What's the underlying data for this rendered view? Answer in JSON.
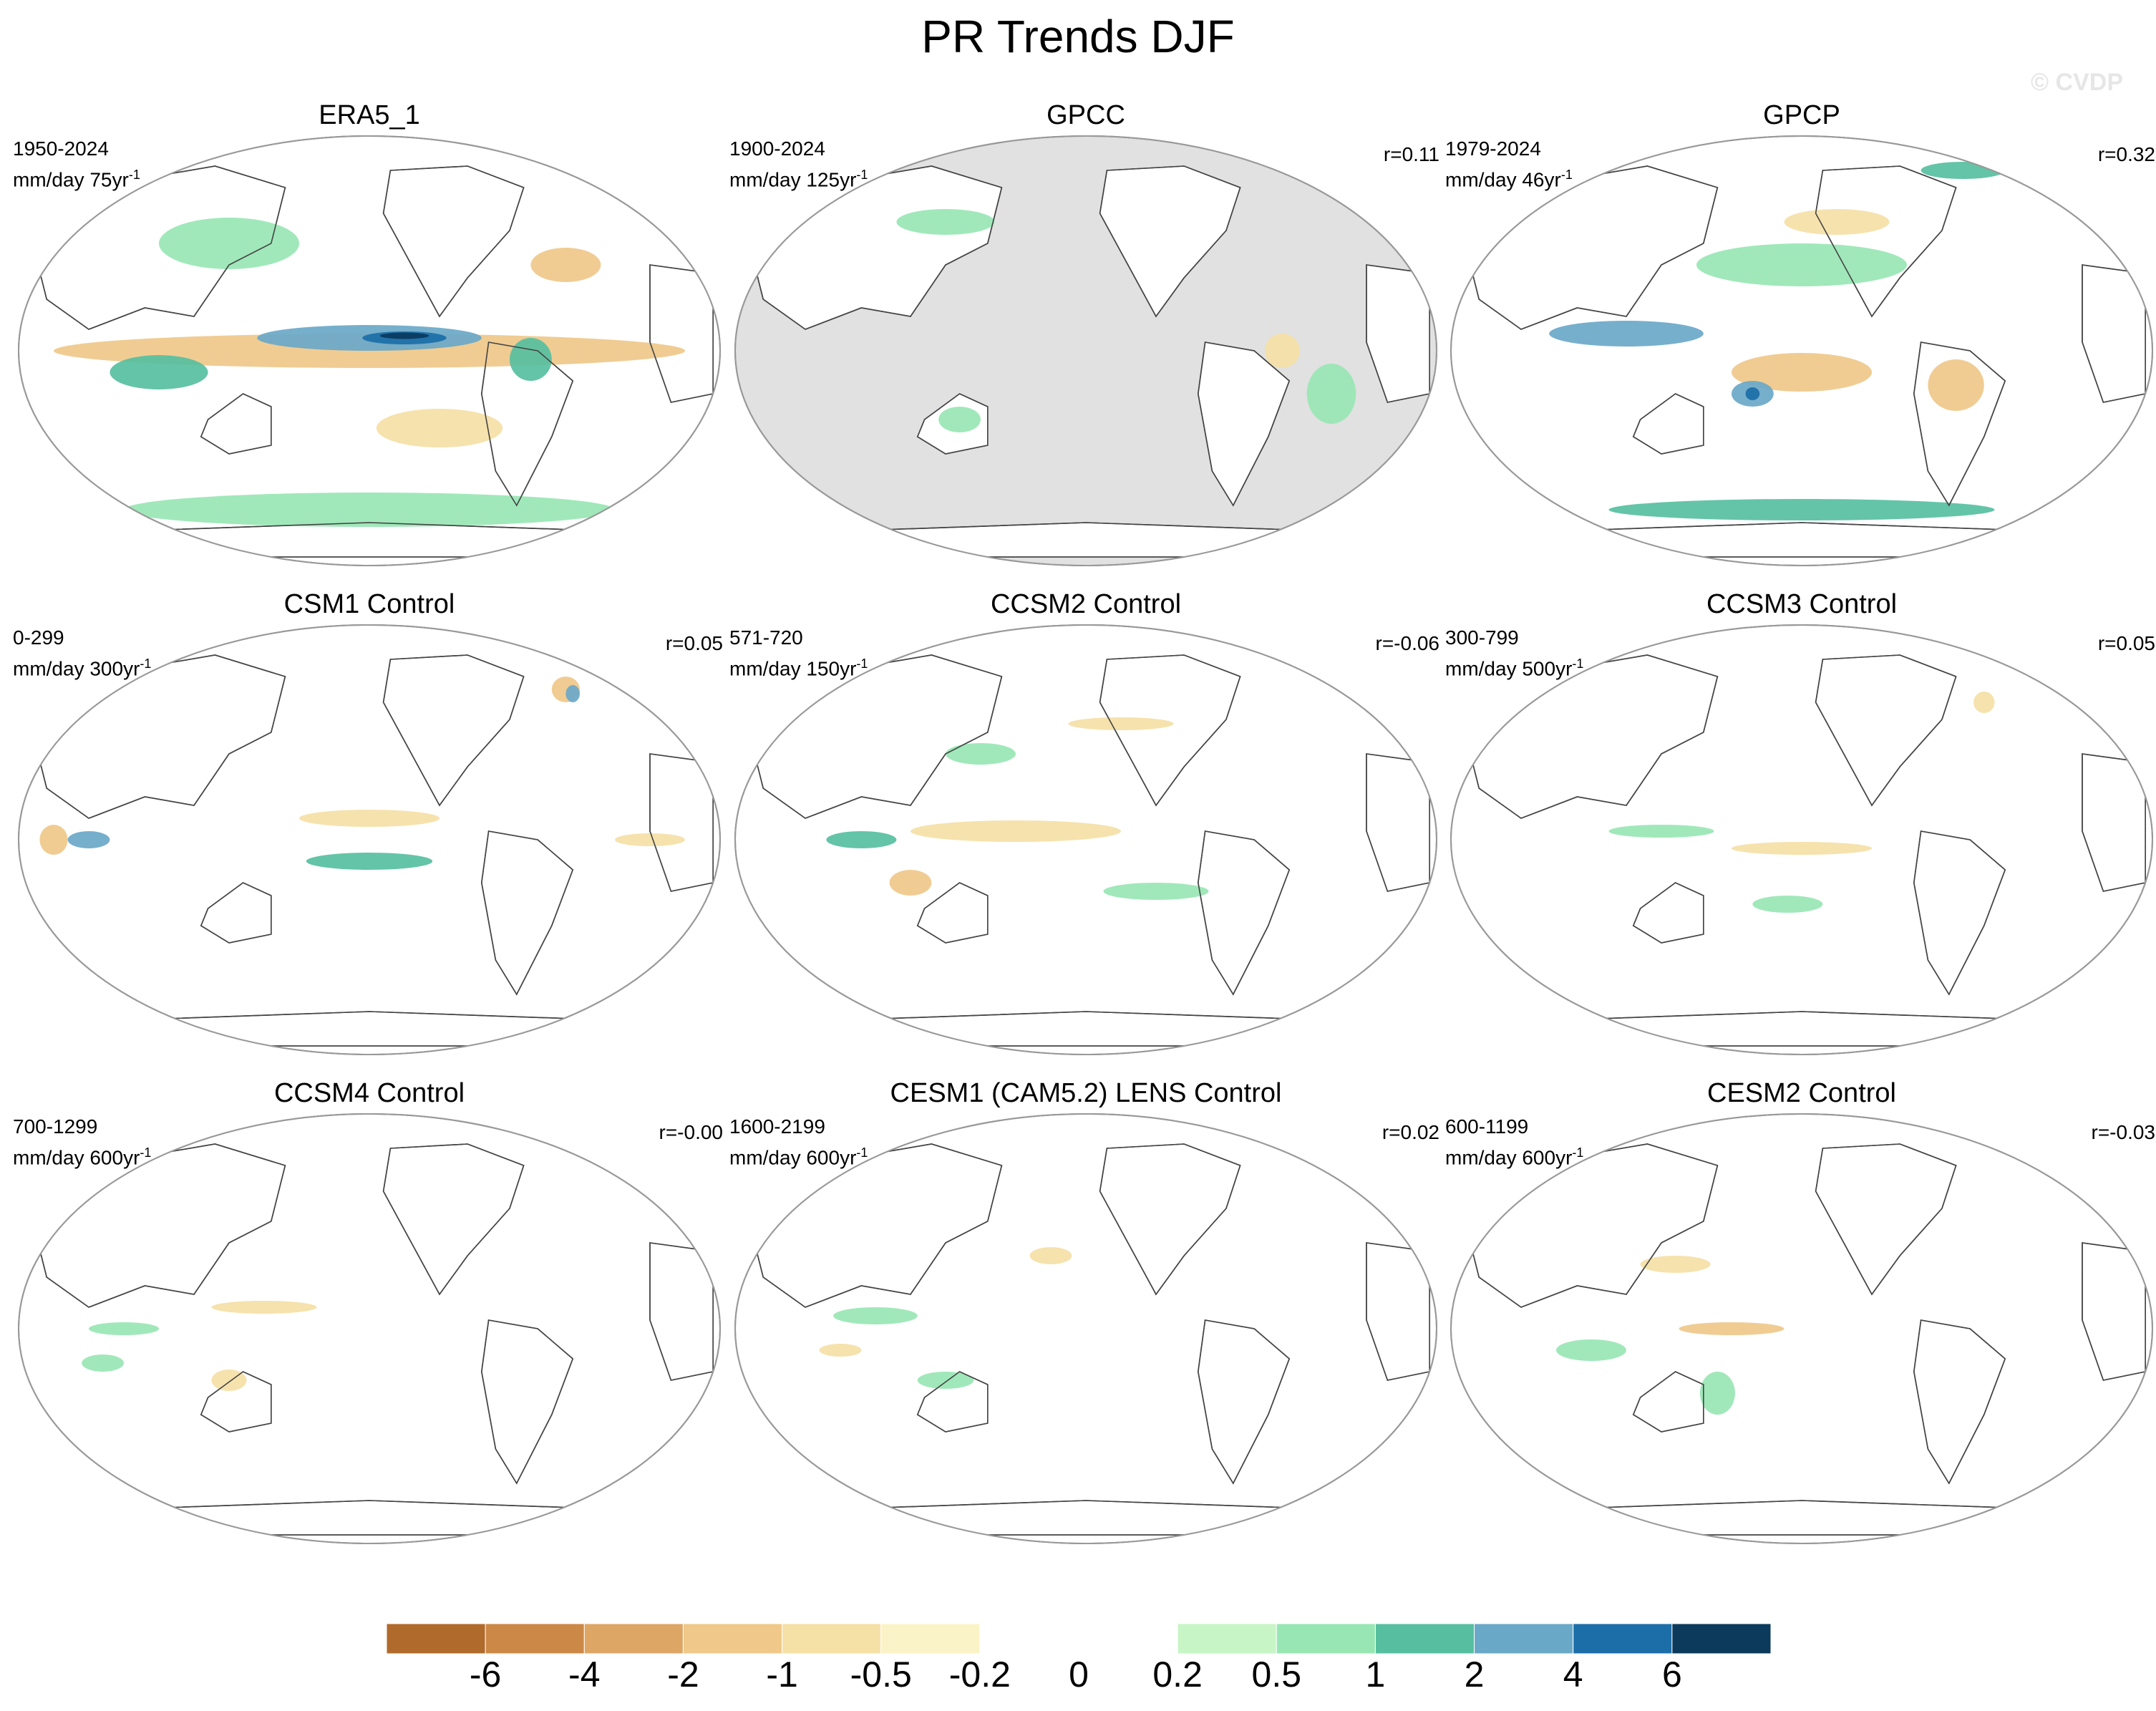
{
  "figure": {
    "title": "PR Trends DJF",
    "watermark": "© CVDP"
  },
  "palette": {
    "-6": "#b06a2c",
    "-4": "#cc8846",
    "-2": "#dda665",
    "-1": "#efc88a",
    "-0.5": "#f5e0a6",
    "-0.2": "#fbf3c8",
    "0": "#ffffff",
    "0.2": "#c8f5c6",
    "0.5": "#98e6b4",
    "1": "#57bfa0",
    "2": "#6aa8c8",
    "4": "#1c6ea8",
    "6": "#0b3a5c",
    "masked": "#e1e1e1"
  },
  "panels": [
    {
      "title": "ERA5_1",
      "period": "1950-2024",
      "units": "mm/day 75yr",
      "units_exp": "-1",
      "corr": "",
      "masked_ocean": false,
      "blobs": [
        [
          "-1",
          [
            0.5,
            0.5
          ],
          [
            0.9,
            0.08
          ]
        ],
        [
          "2",
          [
            0.5,
            0.47
          ],
          [
            0.32,
            0.06
          ]
        ],
        [
          "4",
          [
            0.55,
            0.47
          ],
          [
            0.12,
            0.03
          ]
        ],
        [
          "6",
          [
            0.55,
            0.465
          ],
          [
            0.07,
            0.015
          ]
        ],
        [
          "1",
          [
            0.2,
            0.55
          ],
          [
            0.14,
            0.08
          ]
        ],
        [
          "0.5",
          [
            0.5,
            0.87
          ],
          [
            0.7,
            0.08
          ]
        ],
        [
          "0.5",
          [
            0.3,
            0.25
          ],
          [
            0.2,
            0.12
          ]
        ],
        [
          "-1",
          [
            0.78,
            0.3
          ],
          [
            0.1,
            0.08
          ]
        ],
        [
          "-0.5",
          [
            0.6,
            0.68
          ],
          [
            0.18,
            0.09
          ]
        ],
        [
          "1",
          [
            0.73,
            0.52
          ],
          [
            0.06,
            0.1
          ]
        ]
      ]
    },
    {
      "title": "GPCC",
      "period": "1900-2024",
      "units": "mm/day 125yr",
      "units_exp": "-1",
      "corr": "r=0.11",
      "masked_ocean": true,
      "blobs": [
        [
          "0.5",
          [
            0.3,
            0.2
          ],
          [
            0.14,
            0.06
          ]
        ],
        [
          "0.5",
          [
            0.85,
            0.6
          ],
          [
            0.07,
            0.14
          ]
        ],
        [
          "-0.5",
          [
            0.78,
            0.5
          ],
          [
            0.05,
            0.08
          ]
        ],
        [
          "0.5",
          [
            0.32,
            0.66
          ],
          [
            0.06,
            0.06
          ]
        ]
      ]
    },
    {
      "title": "GPCP",
      "period": "1979-2024",
      "units": "mm/day 46yr",
      "units_exp": "-1",
      "corr": "r=0.32",
      "masked_ocean": false,
      "blobs": [
        [
          "2",
          [
            0.25,
            0.46
          ],
          [
            0.22,
            0.06
          ]
        ],
        [
          "-1",
          [
            0.5,
            0.55
          ],
          [
            0.2,
            0.09
          ]
        ],
        [
          "2",
          [
            0.43,
            0.6
          ],
          [
            0.06,
            0.06
          ]
        ],
        [
          "4",
          [
            0.43,
            0.6
          ],
          [
            0.02,
            0.03
          ]
        ],
        [
          "1",
          [
            0.5,
            0.87
          ],
          [
            0.55,
            0.05
          ]
        ],
        [
          "-1",
          [
            0.72,
            0.58
          ],
          [
            0.08,
            0.12
          ]
        ],
        [
          "0.5",
          [
            0.5,
            0.3
          ],
          [
            0.3,
            0.1
          ]
        ],
        [
          "-0.5",
          [
            0.55,
            0.2
          ],
          [
            0.15,
            0.06
          ]
        ],
        [
          "1",
          [
            0.73,
            0.08
          ],
          [
            0.12,
            0.04
          ]
        ]
      ]
    },
    {
      "title": "CSM1 Control",
      "period": "0-299",
      "units": "mm/day 300yr",
      "units_exp": "-1",
      "corr": "r=0.05",
      "masked_ocean": false,
      "blobs": [
        [
          "-1",
          [
            0.05,
            0.5
          ],
          [
            0.04,
            0.07
          ]
        ],
        [
          "2",
          [
            0.1,
            0.5
          ],
          [
            0.06,
            0.04
          ]
        ],
        [
          "1",
          [
            0.5,
            0.55
          ],
          [
            0.18,
            0.04
          ]
        ],
        [
          "-0.5",
          [
            0.5,
            0.45
          ],
          [
            0.2,
            0.04
          ]
        ],
        [
          "-1",
          [
            0.78,
            0.15
          ],
          [
            0.04,
            0.06
          ]
        ],
        [
          "2",
          [
            0.79,
            0.16
          ],
          [
            0.02,
            0.04
          ]
        ],
        [
          "-0.5",
          [
            0.9,
            0.5
          ],
          [
            0.1,
            0.03
          ]
        ]
      ]
    },
    {
      "title": "CCSM2 Control",
      "period": "571-720",
      "units": "mm/day 150yr",
      "units_exp": "-1",
      "corr": "r=-0.06",
      "masked_ocean": false,
      "blobs": [
        [
          "-0.5",
          [
            0.4,
            0.48
          ],
          [
            0.3,
            0.05
          ]
        ],
        [
          "1",
          [
            0.18,
            0.5
          ],
          [
            0.1,
            0.04
          ]
        ],
        [
          "-1",
          [
            0.25,
            0.6
          ],
          [
            0.06,
            0.06
          ]
        ],
        [
          "0.5",
          [
            0.35,
            0.3
          ],
          [
            0.1,
            0.05
          ]
        ],
        [
          "-0.5",
          [
            0.55,
            0.23
          ],
          [
            0.15,
            0.03
          ]
        ],
        [
          "0.5",
          [
            0.6,
            0.62
          ],
          [
            0.15,
            0.04
          ]
        ]
      ]
    },
    {
      "title": "CCSM3 Control",
      "period": "300-799",
      "units": "mm/day 500yr",
      "units_exp": "-1",
      "corr": "r=0.05",
      "masked_ocean": false,
      "blobs": [
        [
          "-0.5",
          [
            0.5,
            0.52
          ],
          [
            0.2,
            0.03
          ]
        ],
        [
          "0.5",
          [
            0.3,
            0.48
          ],
          [
            0.15,
            0.03
          ]
        ],
        [
          "-0.5",
          [
            0.76,
            0.18
          ],
          [
            0.03,
            0.05
          ]
        ],
        [
          "0.5",
          [
            0.48,
            0.65
          ],
          [
            0.1,
            0.04
          ]
        ]
      ]
    },
    {
      "title": "CCSM4 Control",
      "period": "700-1299",
      "units": "mm/day 600yr",
      "units_exp": "-1",
      "corr": "r=-0.00",
      "masked_ocean": false,
      "blobs": [
        [
          "0.5",
          [
            0.15,
            0.5
          ],
          [
            0.1,
            0.03
          ]
        ],
        [
          "-0.5",
          [
            0.35,
            0.45
          ],
          [
            0.15,
            0.03
          ]
        ],
        [
          "0.5",
          [
            0.12,
            0.58
          ],
          [
            0.06,
            0.04
          ]
        ],
        [
          "-0.5",
          [
            0.3,
            0.62
          ],
          [
            0.05,
            0.05
          ]
        ]
      ]
    },
    {
      "title": "CESM1 (CAM5.2) LENS Control",
      "period": "1600-2199",
      "units": "mm/day 600yr",
      "units_exp": "-1",
      "corr": "r=0.02",
      "masked_ocean": false,
      "blobs": [
        [
          "0.5",
          [
            0.2,
            0.47
          ],
          [
            0.12,
            0.04
          ]
        ],
        [
          "-0.5",
          [
            0.45,
            0.33
          ],
          [
            0.06,
            0.04
          ]
        ],
        [
          "0.5",
          [
            0.3,
            0.62
          ],
          [
            0.08,
            0.04
          ]
        ],
        [
          "-0.5",
          [
            0.15,
            0.55
          ],
          [
            0.06,
            0.03
          ]
        ]
      ]
    },
    {
      "title": "CESM2 Control",
      "period": "600-1199",
      "units": "mm/day 600yr",
      "units_exp": "-1",
      "corr": "r=-0.03",
      "masked_ocean": false,
      "blobs": [
        [
          "-1",
          [
            0.4,
            0.5
          ],
          [
            0.15,
            0.03
          ]
        ],
        [
          "0.5",
          [
            0.38,
            0.65
          ],
          [
            0.05,
            0.1
          ]
        ],
        [
          "0.5",
          [
            0.2,
            0.55
          ],
          [
            0.1,
            0.05
          ]
        ],
        [
          "-0.5",
          [
            0.32,
            0.35
          ],
          [
            0.1,
            0.04
          ]
        ]
      ]
    }
  ],
  "colorbar": {
    "labels": [
      "-6",
      "-4",
      "-2",
      "-1",
      "-0.5",
      "-0.2",
      "0",
      "0.2",
      "0.5",
      "1",
      "2",
      "4",
      "6"
    ],
    "boxes": [
      "-6",
      "-4",
      "-2",
      "-1",
      "-0.5",
      "-0.2",
      "0",
      "0",
      "0.2",
      "0.5",
      "1",
      "2",
      "4",
      "6"
    ]
  }
}
